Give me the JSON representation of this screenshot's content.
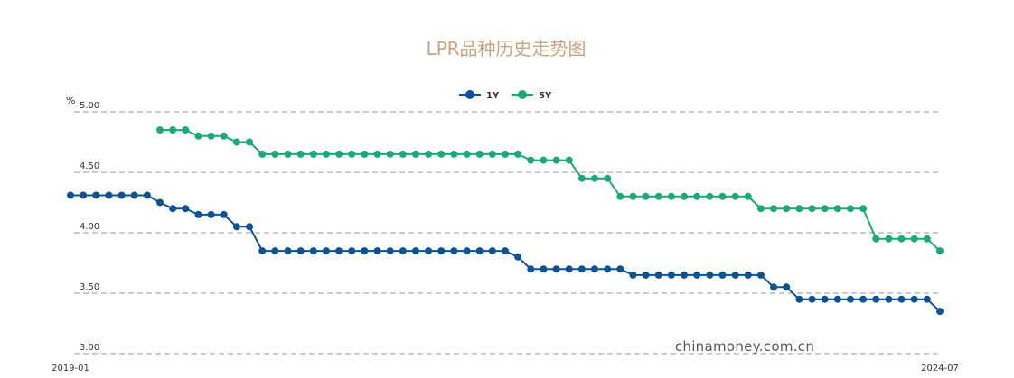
{
  "chart_data": {
    "type": "line",
    "title": "LPR品种历史走势图",
    "ylabel": "%",
    "ylim": [
      3.0,
      5.0
    ],
    "yticks": [
      "5.00",
      "4.50",
      "4.00",
      "3.50",
      "3.00"
    ],
    "xtick_labels": [
      "2019-01",
      "2024-07"
    ],
    "grid": "horizontal-dashed",
    "legend_position": "top-center",
    "watermark": "chinamoney.com.cn",
    "series": [
      {
        "name": "1Y",
        "color": "#0b5394",
        "values": [
          4.31,
          4.31,
          4.31,
          4.31,
          4.31,
          4.31,
          4.31,
          4.25,
          4.2,
          4.2,
          4.15,
          4.15,
          4.15,
          4.05,
          4.05,
          3.85,
          3.85,
          3.85,
          3.85,
          3.85,
          3.85,
          3.85,
          3.85,
          3.85,
          3.85,
          3.85,
          3.85,
          3.85,
          3.85,
          3.85,
          3.85,
          3.85,
          3.85,
          3.85,
          3.85,
          3.8,
          3.7,
          3.7,
          3.7,
          3.7,
          3.7,
          3.7,
          3.7,
          3.7,
          3.65,
          3.65,
          3.65,
          3.65,
          3.65,
          3.65,
          3.65,
          3.65,
          3.65,
          3.65,
          3.65,
          3.55,
          3.55,
          3.45,
          3.45,
          3.45,
          3.45,
          3.45,
          3.45,
          3.45,
          3.45,
          3.45,
          3.45,
          3.45,
          3.35
        ]
      },
      {
        "name": "5Y",
        "color": "#1aaa74",
        "values": [
          null,
          null,
          null,
          null,
          null,
          null,
          null,
          4.85,
          4.85,
          4.85,
          4.8,
          4.8,
          4.8,
          4.75,
          4.75,
          4.65,
          4.65,
          4.65,
          4.65,
          4.65,
          4.65,
          4.65,
          4.65,
          4.65,
          4.65,
          4.65,
          4.65,
          4.65,
          4.65,
          4.65,
          4.65,
          4.65,
          4.65,
          4.65,
          4.65,
          4.65,
          4.6,
          4.6,
          4.6,
          4.6,
          4.45,
          4.45,
          4.45,
          4.3,
          4.3,
          4.3,
          4.3,
          4.3,
          4.3,
          4.3,
          4.3,
          4.3,
          4.3,
          4.3,
          4.2,
          4.2,
          4.2,
          4.2,
          4.2,
          4.2,
          4.2,
          4.2,
          4.2,
          3.95,
          3.95,
          3.95,
          3.95,
          3.95,
          3.85
        ]
      }
    ]
  }
}
